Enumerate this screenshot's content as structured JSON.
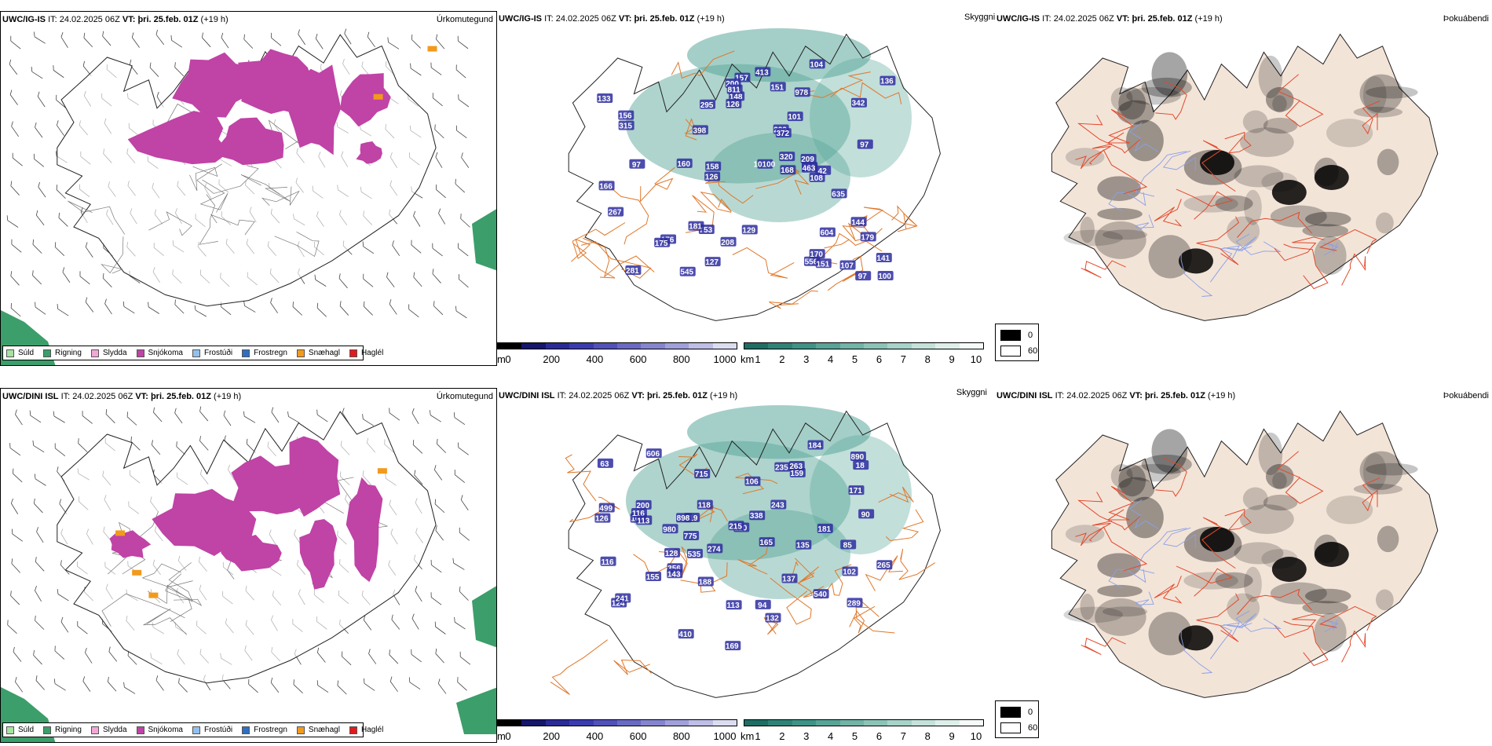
{
  "rows": [
    {
      "model": "UWC/IG-IS",
      "it_label": "IT:",
      "it_value": "24.02.2025 06Z",
      "vt_label": "VT:",
      "vt_value": "þri. 25.feb. 01Z",
      "lead": "(+19 h)",
      "cloud_labels": [
        "157",
        "101",
        "753",
        "320",
        "200",
        "978",
        "166",
        "176",
        "148",
        "179",
        "181",
        "133",
        "135",
        "156",
        "168",
        "556",
        "635",
        "463",
        "160",
        "342",
        "10100",
        "209",
        "299",
        "129",
        "295",
        "398",
        "144",
        "413",
        "126",
        "267",
        "372",
        "315",
        "545",
        "97",
        "151",
        "141",
        "108",
        "604",
        "208",
        "811",
        "126",
        "136",
        "158",
        "97",
        "100",
        "107",
        "281",
        "170",
        "175",
        "104",
        "151",
        "42",
        "127",
        "97"
      ]
    },
    {
      "model": "UWC/DINI ISL",
      "it_label": "IT:",
      "it_value": "24.02.2025 06Z",
      "vt_label": "VT:",
      "vt_value": "þri. 25.feb. 01Z",
      "lead": "(+19 h)",
      "cloud_labels": [
        "159",
        "235",
        "606",
        "263",
        "289",
        "274",
        "181",
        "715",
        "132",
        "419",
        "188",
        "103",
        "243",
        "356",
        "775",
        "116",
        "118",
        "110",
        "85",
        "63",
        "265",
        "215",
        "338",
        "200",
        "155",
        "898",
        "410",
        "535",
        "165",
        "540",
        "980",
        "184",
        "890",
        "143",
        "116",
        "499",
        "135",
        "124",
        "113",
        "90",
        "102",
        "94",
        "128",
        "171",
        "137",
        "126",
        "169",
        "241",
        "106",
        "18",
        "113"
      ]
    }
  ],
  "panel_titles": {
    "precip_type": "Úrkomutegund",
    "cloud": "Skyggni",
    "dewpoint": "Þokuábendi"
  },
  "precip_legend": [
    {
      "label": "Súld",
      "color": "#a6e3a0"
    },
    {
      "label": "Rigning",
      "color": "#3c9e6a"
    },
    {
      "label": "Slydda",
      "color": "#f2a6d6"
    },
    {
      "label": "Snjókoma",
      "color": "#c043a6"
    },
    {
      "label": "Frostúði",
      "color": "#93c1ec"
    },
    {
      "label": "Frostregn",
      "color": "#2f6fc1"
    },
    {
      "label": "Snæhagl",
      "color": "#f29a1d"
    },
    {
      "label": "Haglél",
      "color": "#e31a1c"
    }
  ],
  "cloud_base_bar": {
    "unit": "m",
    "ticks": [
      "0",
      "200",
      "400",
      "600",
      "800",
      "1000"
    ],
    "colors": [
      "#000000",
      "#16166b",
      "#2a2a96",
      "#3b3bb0",
      "#5151b8",
      "#6a6ac4",
      "#8585cf",
      "#a0a0da",
      "#bebee6",
      "#dcdcf1"
    ]
  },
  "visibility_bar": {
    "unit": "km",
    "ticks": [
      "1",
      "2",
      "3",
      "4",
      "5",
      "6",
      "7",
      "8",
      "9",
      "10"
    ],
    "colors": [
      "#1f6e63",
      "#2f8376",
      "#3f9386",
      "#58a496",
      "#72b4a7",
      "#8cc3b7",
      "#a8d3c9",
      "#c3e2da",
      "#deefea",
      "#f6fbf9"
    ]
  },
  "dewpoint_legend": [
    {
      "label": "0",
      "color": "#000000"
    },
    {
      "label": "60",
      "color": "#ffffff"
    }
  ],
  "colors": {
    "snow": "#c043a6",
    "rain": "#3c9e6a",
    "ice_pellets": "#f29a1d",
    "fog_teal": "#5aa89a",
    "low_cloud": "#2e2ea0",
    "roads": "#e0782a",
    "land_fill": "#f3e4d8",
    "dewpoint_roads": "#e3492b",
    "rivers": "#8aa0e6"
  }
}
